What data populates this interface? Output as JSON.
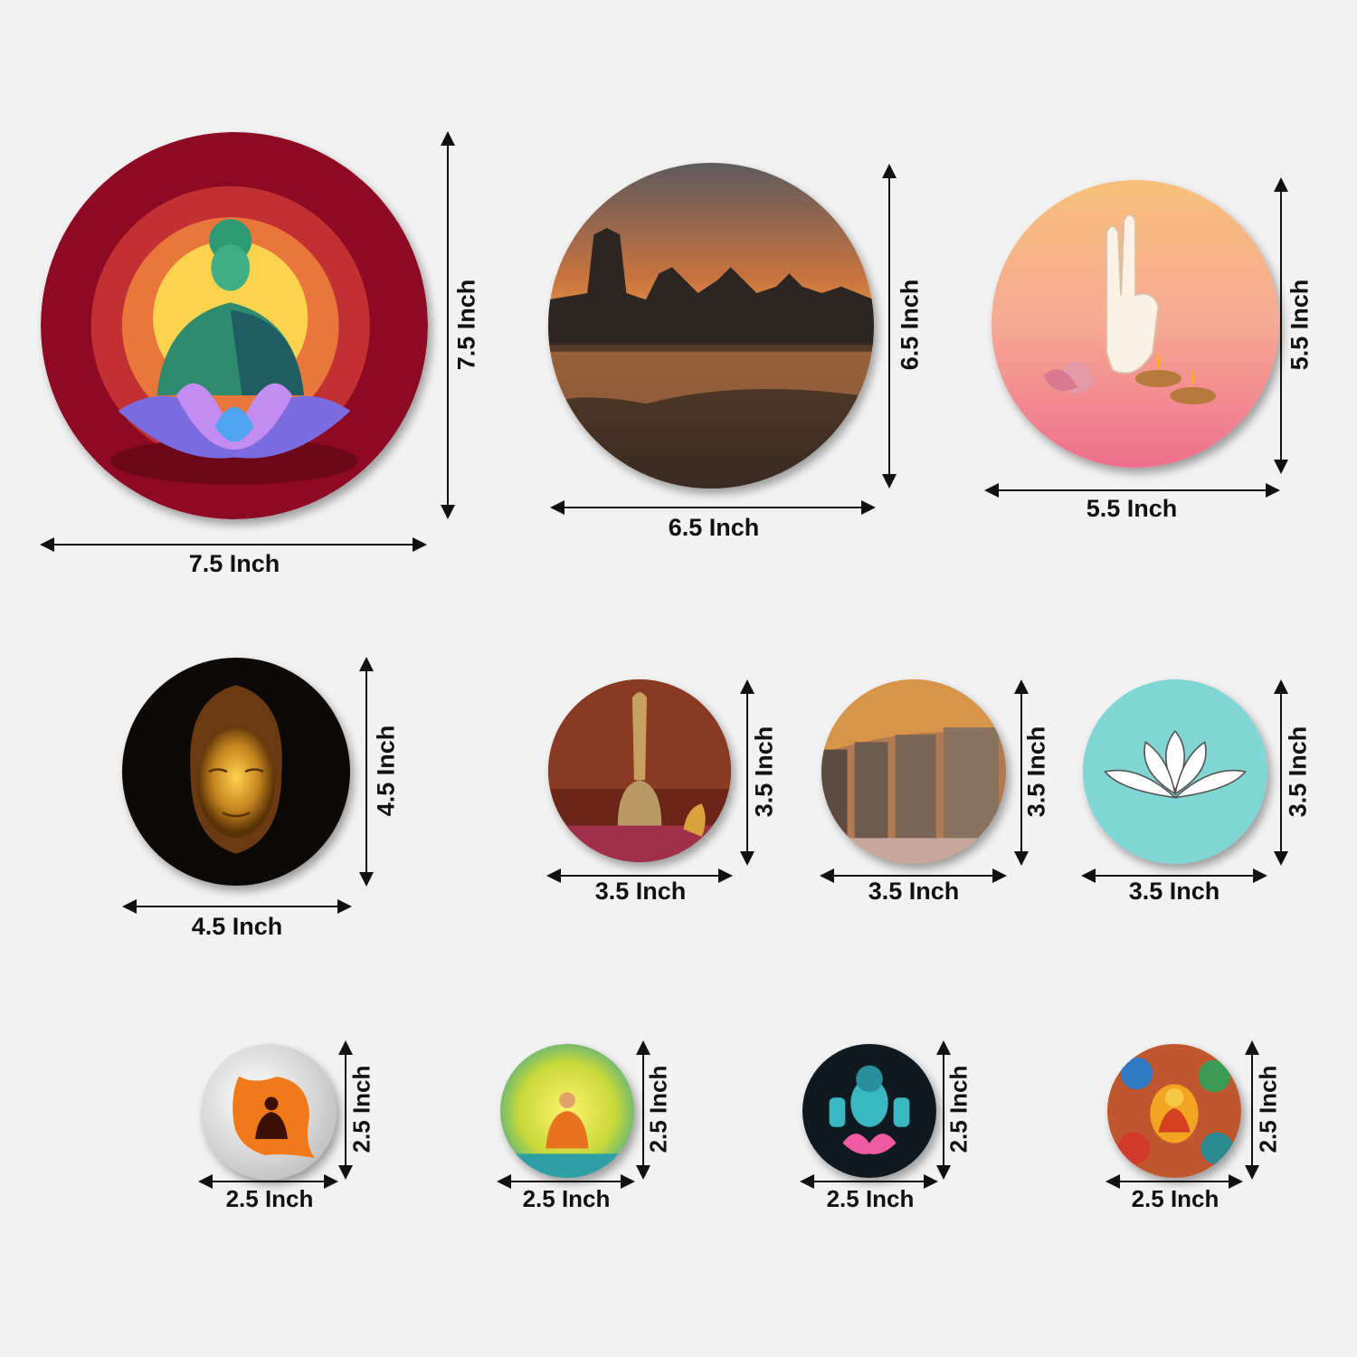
{
  "plates": [
    {
      "subject": "green-buddha-lotus",
      "width_label": "7.5 Inch",
      "height_label": "7.5 Inch"
    },
    {
      "subject": "buddha-statues-sunset",
      "width_label": "6.5 Inch",
      "height_label": "6.5 Inch"
    },
    {
      "subject": "hand-mudra-lotus-diyas",
      "width_label": "5.5 Inch",
      "height_label": "5.5 Inch"
    },
    {
      "subject": "golden-buddha-face",
      "width_label": "4.5 Inch",
      "height_label": "4.5 Inch"
    },
    {
      "subject": "tibetan-bell",
      "width_label": "3.5 Inch",
      "height_label": "3.5 Inch"
    },
    {
      "subject": "prayer-wheels",
      "width_label": "3.5 Inch",
      "height_label": "3.5 Inch"
    },
    {
      "subject": "white-lotus-teal",
      "width_label": "3.5 Inch",
      "height_label": "3.5 Inch"
    },
    {
      "subject": "buddha-silhouette-leaf",
      "width_label": "2.5 Inch",
      "height_label": "2.5 Inch"
    },
    {
      "subject": "meditating-monk-yellow",
      "width_label": "2.5 Inch",
      "height_label": "2.5 Inch"
    },
    {
      "subject": "teal-buddha-lotus",
      "width_label": "2.5 Inch",
      "height_label": "2.5 Inch"
    },
    {
      "subject": "thangka-buddha",
      "width_label": "2.5 Inch",
      "height_label": "2.5 Inch"
    }
  ],
  "colors": {
    "maroon": "#8e0a22",
    "dimension_line": "#111111",
    "background": "#f2f2f2"
  }
}
